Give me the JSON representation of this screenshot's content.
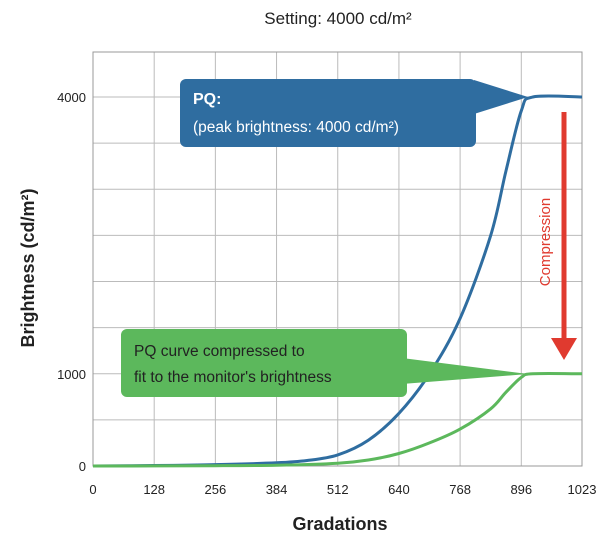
{
  "chart_data": {
    "type": "line",
    "title": "Setting: 4000 cd/m²",
    "xlabel": "Gradations",
    "ylabel": "Brightness (cd/m²)",
    "xlim": [
      0,
      1023
    ],
    "ylim": [
      0,
      4000
    ],
    "x_ticks": [
      0,
      128,
      256,
      384,
      512,
      640,
      768,
      896,
      1023
    ],
    "x_tick_labels": [
      "0",
      "128",
      "256",
      "384",
      "512",
      "640",
      "768",
      "896",
      "1023"
    ],
    "y_ticks": [
      0,
      1000,
      4000
    ],
    "y_tick_labels": [
      "0",
      "1000",
      "4000"
    ],
    "grid": true,
    "series": [
      {
        "color": "#2f6da0",
        "x": [
          0,
          128,
          256,
          384,
          448,
          512,
          576,
          640,
          704,
          768,
          832,
          864,
          896,
          920,
          1023
        ],
        "y": [
          0,
          5,
          15,
          35,
          60,
          120,
          280,
          570,
          1000,
          1600,
          2500,
          3200,
          3850,
          4000,
          4000
        ]
      },
      {
        "color": "#5cb85c",
        "x": [
          0,
          256,
          384,
          512,
          576,
          640,
          704,
          768,
          832,
          864,
          896,
          920,
          1023
        ],
        "y": [
          0,
          3,
          9,
          30,
          65,
          135,
          250,
          400,
          620,
          800,
          960,
          1000,
          1000
        ]
      }
    ],
    "annotations": {
      "pq_title": "PQ:",
      "pq_sub": "(peak brightness: 4000 cd/m²)",
      "green_line1": "PQ curve compressed to",
      "green_line2": "fit to the monitor's brightness",
      "arrow_label": "Compression"
    },
    "colors": {
      "pq_box": "#2f6da0",
      "green_box": "#5cb85c",
      "arrow": "#e03a2f",
      "grid": "#bbbbbb"
    }
  }
}
